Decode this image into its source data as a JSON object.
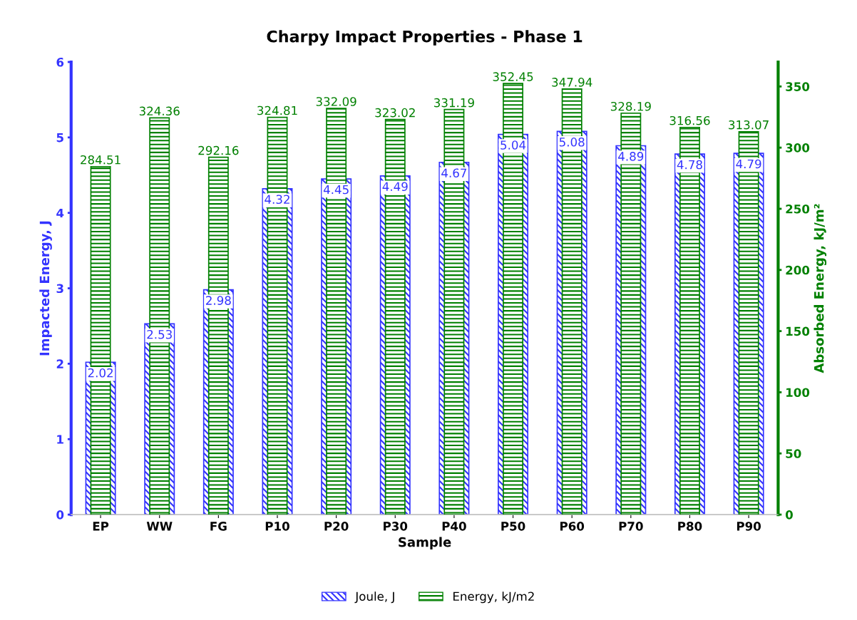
{
  "chart_data": {
    "type": "bar",
    "title": "Charpy Impact Properties - Phase 1",
    "xlabel": "Sample",
    "ylabel": "Impacted Energy, J",
    "y2label": "Absorbed Energy, kJ/m²",
    "categories": [
      "EP",
      "WW",
      "FG",
      "P10",
      "P20",
      "P30",
      "P40",
      "P50",
      "P60",
      "P70",
      "P80",
      "P90"
    ],
    "series": [
      {
        "name": "Joule, J",
        "color": "#3333ff",
        "values": [
          2.02,
          2.53,
          2.98,
          4.32,
          4.45,
          4.49,
          4.67,
          5.04,
          5.08,
          4.89,
          4.78,
          4.79
        ]
      },
      {
        "name": "Energy, kJ/m2",
        "color": "#008000",
        "axis": "y2",
        "values": [
          284.51,
          324.36,
          292.16,
          324.81,
          332.09,
          323.02,
          331.19,
          352.45,
          347.94,
          328.19,
          316.56,
          313.07
        ]
      }
    ],
    "ylim": [
      0,
      6
    ],
    "yticks": [
      0,
      1,
      2,
      3,
      4,
      5,
      6
    ],
    "y2lim": [
      0,
      370
    ],
    "y2ticks": [
      0,
      50,
      100,
      150,
      200,
      250,
      300,
      350
    ],
    "data_labels": true,
    "legend": "bottom",
    "grid": false
  }
}
